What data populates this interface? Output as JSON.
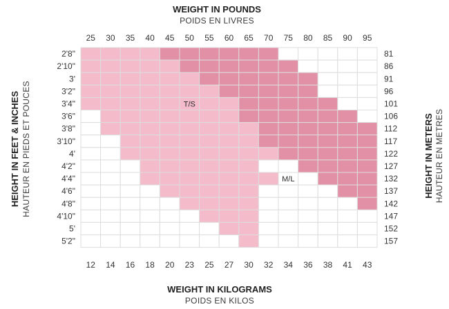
{
  "colors": {
    "ts": "#f4bccb",
    "ml": "#e190a6",
    "empty": "#ffffff",
    "grid": "#dddddd"
  },
  "chart_data": {
    "type": "heatmap",
    "title_top": "WEIGHT IN POUNDS",
    "subtitle_top": "POIDS EN LIVRES",
    "title_bottom": "WEIGHT IN KILOGRAMS",
    "subtitle_bottom": "POIDS EN KILOS",
    "left_title": "HEIGHT IN FEET & INCHES",
    "left_subtitle": "HAUTEUR EN PIEDS ET POUCES",
    "right_title": "HEIGHT IN METERS",
    "right_subtitle": "HAUTEUR EN METRES",
    "pounds": [
      "25",
      "30",
      "35",
      "40",
      "45",
      "50",
      "55",
      "60",
      "65",
      "70",
      "75",
      "80",
      "85",
      "90",
      "95"
    ],
    "kilograms": [
      "12",
      "14",
      "16",
      "18",
      "20",
      "23",
      "25",
      "27",
      "30",
      "32",
      "34",
      "36",
      "38",
      "41",
      "43"
    ],
    "height_feet": [
      "2'8\"",
      "2'10\"",
      "3'",
      "3'2\"",
      "3'4\"",
      "3'6\"",
      "3'8\"",
      "3'10\"",
      "4'",
      "4'2\"",
      "4'4\"",
      "4'6\"",
      "4'8\"",
      "4'10\"",
      "5'",
      "5'2\""
    ],
    "height_cm": [
      "81",
      "86",
      "91",
      "96",
      "101",
      "106",
      "112",
      "117",
      "122",
      "127",
      "132",
      "137",
      "142",
      "147",
      "152",
      "157"
    ],
    "zones": [
      {
        "name": "T/S",
        "label_row": 4,
        "label_col": 5,
        "cells": [
          [
            0,
            3
          ],
          [
            0,
            4
          ],
          [
            0,
            5
          ],
          [
            0,
            6
          ],
          [
            0,
            7
          ],
          [
            1,
            7
          ],
          [
            1,
            8
          ],
          [
            2,
            8
          ],
          [
            2,
            9
          ],
          [
            3,
            8
          ],
          [
            3,
            9
          ],
          [
            4,
            8
          ],
          [
            5,
            8
          ],
          [
            6,
            8
          ],
          [
            7,
            8
          ],
          [
            8,
            8
          ],
          [
            9,
            8
          ]
        ]
      },
      {
        "name": "M/L",
        "label_row": 10,
        "label_col": 10,
        "cells": [
          [
            4,
            9
          ],
          [
            5,
            10
          ],
          [
            5,
            11
          ],
          [
            6,
            11
          ],
          [
            7,
            12
          ],
          [
            7,
            13
          ],
          [
            8,
            14
          ],
          [
            9,
            15
          ],
          [
            10,
            15
          ],
          [
            11,
            15
          ],
          [
            12,
            15
          ],
          [
            13,
            15
          ],
          [
            14,
            15
          ]
        ]
      }
    ]
  }
}
